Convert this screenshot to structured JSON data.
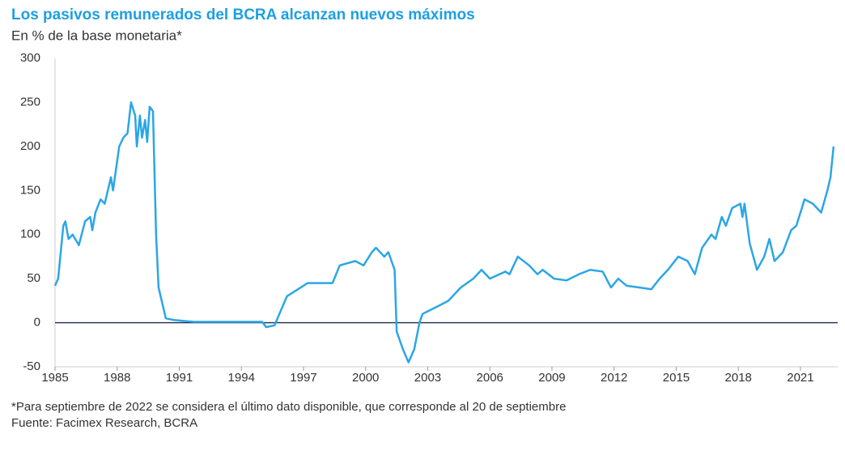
{
  "chart_data": {
    "type": "line",
    "title": "Los pasivos remunerados del BCRA alcanzan nuevos máximos",
    "subtitle": "En % de la base monetaria*",
    "notes": [
      "*Para septiembre de 2022 se considera el último dato disponible, que corresponde al 20 de septiembre",
      "Fuente: Facimex Research, BCRA"
    ],
    "xlim": [
      1985,
      2022.8
    ],
    "xticks": [
      1985,
      1988,
      1991,
      1994,
      1997,
      2000,
      2003,
      2006,
      2009,
      2012,
      2015,
      2018,
      2021
    ],
    "ylim": [
      -50,
      300
    ],
    "yticks": [
      -50,
      0,
      50,
      100,
      150,
      200,
      250,
      300
    ],
    "series": [
      {
        "color": "#2ba6e6",
        "x": [
          1985.0,
          1985.15,
          1985.4,
          1985.5,
          1985.65,
          1985.85,
          1986.05,
          1986.15,
          1986.45,
          1986.7,
          1986.8,
          1986.95,
          1987.2,
          1987.4,
          1987.7,
          1987.8,
          1988.1,
          1988.3,
          1988.5,
          1988.67,
          1988.87,
          1988.95,
          1989.1,
          1989.2,
          1989.35,
          1989.45,
          1989.57,
          1989.73,
          1989.88,
          1990.0,
          1990.1,
          1990.35,
          1990.75,
          1991.7,
          1995.0,
          1995.2,
          1995.6,
          1996.2,
          1997.2,
          1998.4,
          1998.75,
          1999.5,
          1999.9,
          2000.3,
          2000.5,
          2000.9,
          2001.1,
          2001.4,
          2001.5,
          2001.8,
          2002.07,
          2002.35,
          2002.6,
          2002.75,
          2003.6,
          2004.0,
          2004.6,
          2005.2,
          2005.6,
          2006.0,
          2006.75,
          2006.95,
          2007.35,
          2007.9,
          2008.3,
          2008.55,
          2009.1,
          2009.7,
          2010.3,
          2010.85,
          2011.45,
          2011.85,
          2012.2,
          2012.6,
          2013.2,
          2013.8,
          2014.2,
          2014.6,
          2015.1,
          2015.55,
          2015.9,
          2016.25,
          2016.7,
          2016.9,
          2017.2,
          2017.4,
          2017.7,
          2018.1,
          2018.2,
          2018.3,
          2018.55,
          2018.9,
          2019.25,
          2019.5,
          2019.75,
          2020.15,
          2020.55,
          2020.8,
          2021.2,
          2021.6,
          2022.0,
          2022.3,
          2022.45,
          2022.6
        ],
        "values": [
          42,
          50,
          110,
          115,
          95,
          100,
          92,
          88,
          115,
          120,
          105,
          125,
          140,
          135,
          165,
          150,
          200,
          210,
          215,
          250,
          235,
          200,
          235,
          210,
          230,
          205,
          245,
          240,
          100,
          40,
          30,
          5,
          3,
          1,
          1,
          -5,
          -3,
          30,
          45,
          45,
          65,
          70,
          65,
          80,
          85,
          75,
          80,
          60,
          -10,
          -30,
          -45,
          -30,
          0,
          10,
          20,
          25,
          40,
          50,
          60,
          50,
          58,
          55,
          75,
          65,
          55,
          60,
          50,
          48,
          55,
          60,
          58,
          40,
          50,
          42,
          40,
          38,
          50,
          60,
          75,
          70,
          55,
          85,
          100,
          95,
          120,
          110,
          130,
          135,
          120,
          135,
          90,
          60,
          75,
          95,
          70,
          80,
          105,
          110,
          140,
          135,
          125,
          150,
          165,
          200
        ]
      }
    ]
  }
}
